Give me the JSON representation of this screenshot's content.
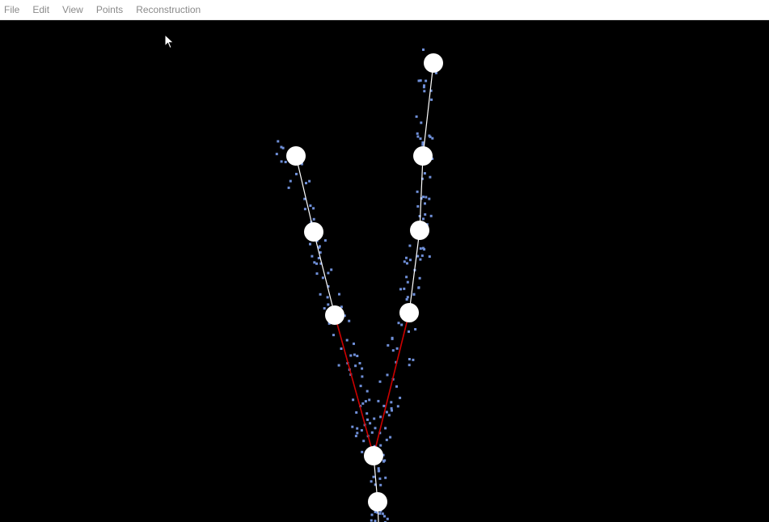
{
  "menu": {
    "items": [
      {
        "label": "File"
      },
      {
        "label": "Edit"
      },
      {
        "label": "View"
      },
      {
        "label": "Points"
      },
      {
        "label": "Reconstruction"
      }
    ]
  },
  "colors": {
    "background": "#000000",
    "menubar": "#ffffff",
    "menu_text": "#8a8a8a",
    "node": "#ffffff",
    "edge": "#ffffff",
    "edge_highlight": "#cc0000",
    "point_cloud": "#6f8fd8"
  },
  "icons": {
    "cursor": "arrow-cursor-icon"
  }
}
